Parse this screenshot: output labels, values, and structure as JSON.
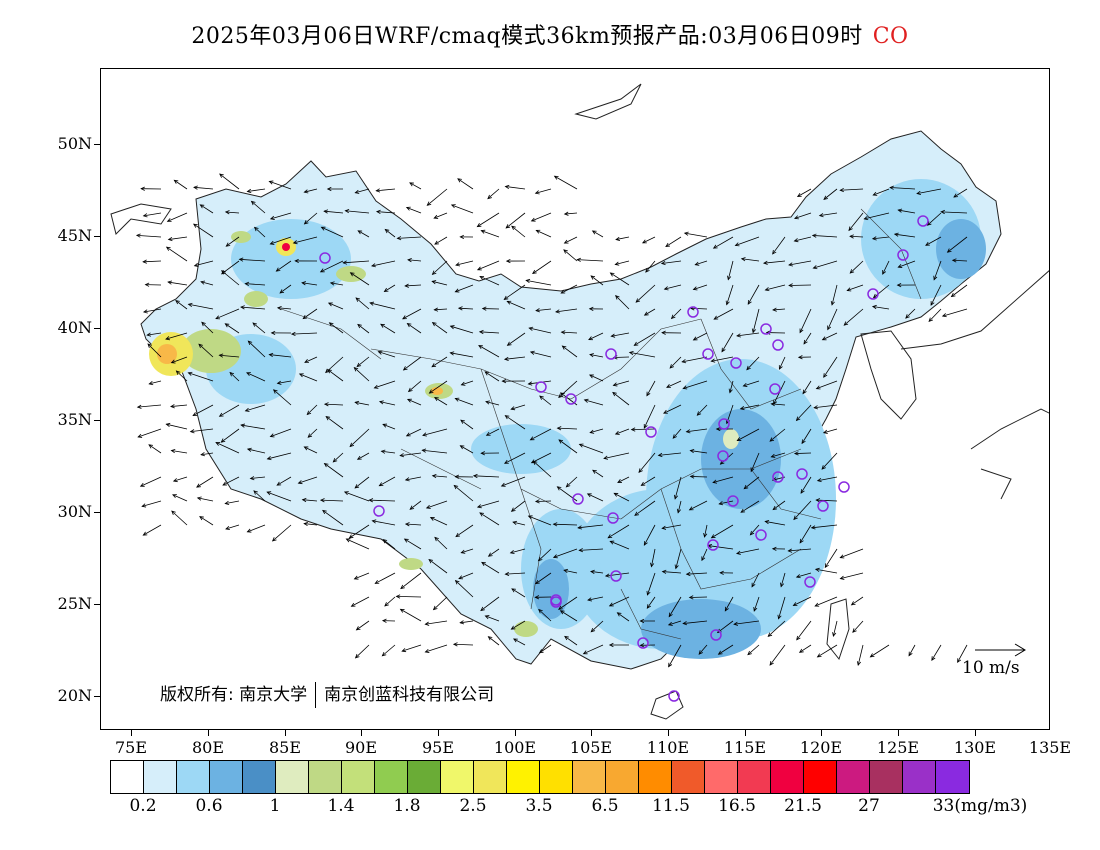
{
  "title": {
    "main": "2025年03月06日WRF/cmaq模式36km预报产品:03月06日09时",
    "species": "CO",
    "species_color": "#e02020"
  },
  "axes": {
    "lat_labels": [
      "50N",
      "45N",
      "40N",
      "35N",
      "30N",
      "25N",
      "20N"
    ],
    "lon_labels": [
      "75E",
      "80E",
      "85E",
      "90E",
      "95E",
      "100E",
      "105E",
      "110E",
      "115E",
      "120E",
      "125E",
      "130E",
      "135E"
    ]
  },
  "copyright": {
    "part1": "版权所有: 南京大学",
    "part2": "南京创蓝科技有限公司"
  },
  "wind_key": {
    "label": "10  m/s"
  },
  "colorbar": {
    "colors": [
      "#ffffff",
      "#d6eefa",
      "#9dd8f5",
      "#6cb2e2",
      "#4a8fc6",
      "#dfecbf",
      "#bfd985",
      "#c3e07a",
      "#90cc50",
      "#6aac36",
      "#f0f76a",
      "#f0e65a",
      "#fff200",
      "#ffe000",
      "#f8b848",
      "#f8a830",
      "#ff8c00",
      "#f05a2a",
      "#ff6a6a",
      "#f23a52",
      "#f00040",
      "#ff0000",
      "#cc1a80",
      "#a83060",
      "#9a30c8",
      "#8a2ae0"
    ],
    "labels": [
      "0.2",
      "0.6",
      "1",
      "1.4",
      "1.8",
      "2.5",
      "3.5",
      "6.5",
      "11.5",
      "16.5",
      "21.5",
      "27",
      "33(mg/m3)"
    ]
  }
}
